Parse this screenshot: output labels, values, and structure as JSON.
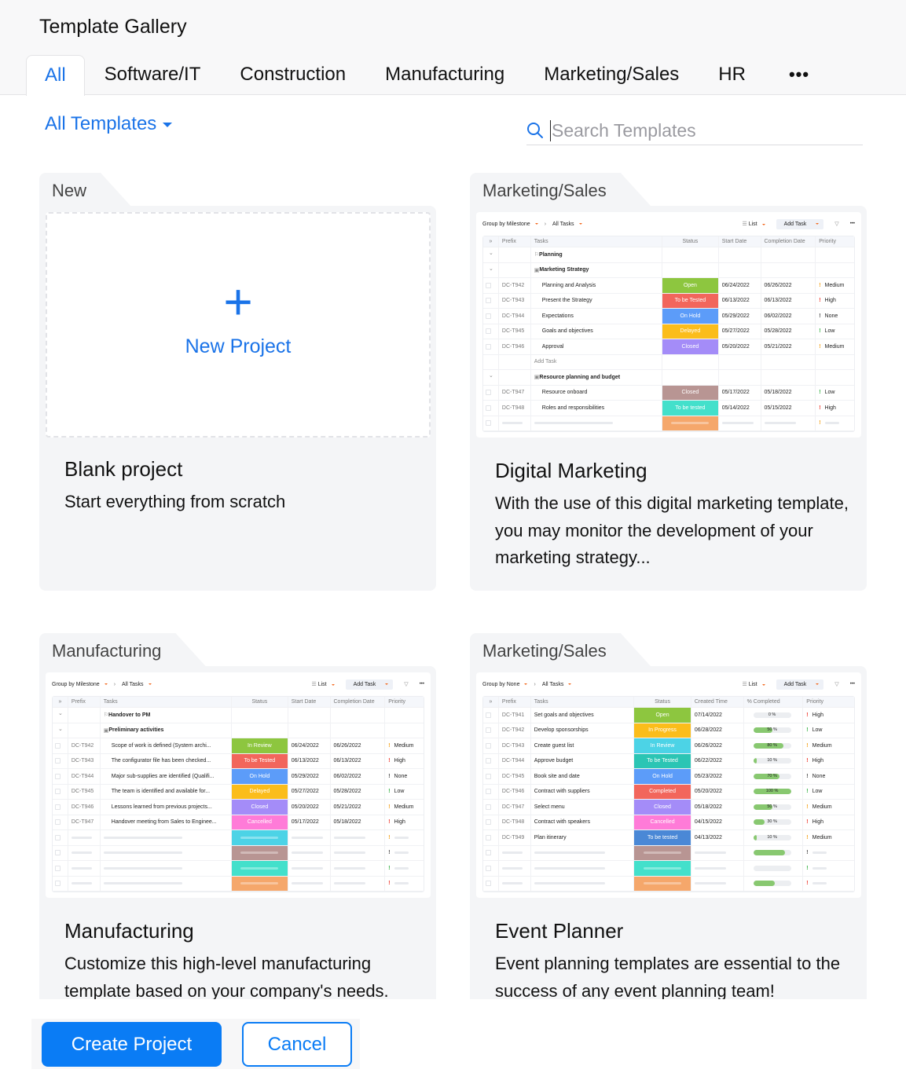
{
  "header": {
    "title": "Template Gallery",
    "tabs": [
      "All",
      "Software/IT",
      "Construction",
      "Manufacturing",
      "Marketing/Sales",
      "HR"
    ],
    "active_tab": "All",
    "more_label": "•••"
  },
  "filter": {
    "label": "All Templates"
  },
  "search": {
    "placeholder": "Search Templates",
    "value": ""
  },
  "cards": [
    {
      "category": "New",
      "title": "Blank project",
      "description": "Start everything from scratch",
      "preview_label": "New Project"
    },
    {
      "category": "Marketing/Sales",
      "title": "Digital Marketing",
      "description": "With the use of this digital marketing template, you may monitor the development of your marketing strategy..."
    },
    {
      "category": "Manufacturing",
      "title": "Manufacturing",
      "description": "Customize this high-level manufacturing template based on your company's needs."
    },
    {
      "category": "Marketing/Sales",
      "title": "Event Planner",
      "description": "Event planning templates are essential to the success of any event planning team!"
    }
  ],
  "previews": [
    {
      "group_by": "Group by Milestone",
      "view": "All Tasks",
      "list_label": "List",
      "add_task": "Add Task",
      "columns": [
        "Prefix",
        "Tasks",
        "Status",
        "Start Date",
        "Completion Date",
        "Priority"
      ],
      "rows": [
        {
          "type": "milestone",
          "task": "Planning"
        },
        {
          "type": "tasklist",
          "task": "Marketing Strategy"
        },
        {
          "type": "task",
          "prefix": "DC-T942",
          "task": "Planning and Analysis",
          "status": "Open",
          "color": "#8dc63f",
          "c1": "06/24/2022",
          "c2": "06/26/2022",
          "priority": "Medium"
        },
        {
          "type": "task",
          "prefix": "DC-T943",
          "task": "Present the Strategy",
          "status": "To be Tested",
          "color": "#f2665c",
          "c1": "06/13/2022",
          "c2": "06/13/2022",
          "priority": "High"
        },
        {
          "type": "task",
          "prefix": "DC-T944",
          "task": "Expectations",
          "status": "On Hold",
          "color": "#5c9cf9",
          "c1": "05/29/2022",
          "c2": "06/02/2022",
          "priority": "None"
        },
        {
          "type": "task",
          "prefix": "DC-T945",
          "task": "Goals and objectives",
          "status": "Delayed",
          "color": "#fbbd1b",
          "c1": "05/27/2022",
          "c2": "05/28/2022",
          "priority": "Low"
        },
        {
          "type": "task",
          "prefix": "DC-T946",
          "task": "Approval",
          "status": "Closed",
          "color": "#a48cf8",
          "c1": "05/20/2022",
          "c2": "05/21/2022",
          "priority": "Medium"
        },
        {
          "type": "add",
          "task": "Add Task"
        },
        {
          "type": "tasklist",
          "task": "Resource planning and budget"
        },
        {
          "type": "task",
          "prefix": "DC-T947",
          "task": "Resource onboard",
          "status": "Closed",
          "color": "#b89593",
          "c1": "05/17/2022",
          "c2": "05/18/2022",
          "priority": "Low"
        },
        {
          "type": "task",
          "prefix": "DC-T948",
          "task": "Roles and responsibilities",
          "status": "To be tested",
          "color": "#43e0cb",
          "c1": "05/14/2022",
          "c2": "05/15/2022",
          "priority": "High"
        },
        {
          "type": "placeholder",
          "color": "#f5a76b",
          "priority": "Medium"
        }
      ]
    },
    {
      "group_by": "Group by Milestone",
      "view": "All Tasks",
      "list_label": "List",
      "add_task": "Add Task",
      "columns": [
        "Prefix",
        "Tasks",
        "Status",
        "Start Date",
        "Completion Date",
        "Priority"
      ],
      "rows": [
        {
          "type": "milestone",
          "task": "Handover to PM"
        },
        {
          "type": "tasklist",
          "task": "Preliminary activities"
        },
        {
          "type": "task",
          "prefix": "DC-T942",
          "task": "Scope of work is defined (System archi...",
          "status": "In Review",
          "color": "#8dc63f",
          "c1": "06/24/2022",
          "c2": "06/26/2022",
          "priority": "Medium"
        },
        {
          "type": "task",
          "prefix": "DC-T943",
          "task": "The configurator file has been checked...",
          "status": "To be Tested",
          "color": "#f2665c",
          "c1": "06/13/2022",
          "c2": "06/13/2022",
          "priority": "High"
        },
        {
          "type": "task",
          "prefix": "DC-T944",
          "task": "Major sub-supplies are identified (Qualifi...",
          "status": "On Hold",
          "color": "#5c9cf9",
          "c1": "05/29/2022",
          "c2": "06/02/2022",
          "priority": "None"
        },
        {
          "type": "task",
          "prefix": "DC-T945",
          "task": "The team is identified and available for...",
          "status": "Delayed",
          "color": "#fbbd1b",
          "c1": "05/27/2022",
          "c2": "05/28/2022",
          "priority": "Low"
        },
        {
          "type": "task",
          "prefix": "DC-T946",
          "task": "Lessons learned from previous projects...",
          "status": "Closed",
          "color": "#a48cf8",
          "c1": "05/20/2022",
          "c2": "05/21/2022",
          "priority": "Medium"
        },
        {
          "type": "task",
          "prefix": "DC-T947",
          "task": "Handover meeting from Sales to Enginee...",
          "status": "Cancelled",
          "color": "#ff7bd8",
          "c1": "05/17/2022",
          "c2": "05/18/2022",
          "priority": "High"
        },
        {
          "type": "placeholder",
          "color": "#4cd3e6",
          "priority": "Medium"
        },
        {
          "type": "placeholder",
          "color": "#b89593",
          "priority": "None"
        },
        {
          "type": "placeholder",
          "color": "#43e0cb",
          "priority": "Low"
        },
        {
          "type": "placeholder",
          "color": "#f5a76b",
          "priority": "High"
        }
      ]
    },
    {
      "group_by": "Group by None",
      "view": "All Tasks",
      "list_label": "List",
      "add_task": "Add Task",
      "columns": [
        "Prefix",
        "Tasks",
        "Status",
        "Created Time",
        "% Completed",
        "Priority"
      ],
      "rows": [
        {
          "type": "task",
          "prefix": "DC-T941",
          "task": "Set goals and objectives",
          "status": "Open",
          "color": "#8dc63f",
          "c1": "07/14/2022",
          "progress": 0,
          "c2": "0 %",
          "priority": "High"
        },
        {
          "type": "task",
          "prefix": "DC-T942",
          "task": "Develop sponsorships",
          "status": "In Progress",
          "color": "#fbbd1b",
          "c1": "06/28/2022",
          "progress": 50,
          "c2": "50 %",
          "priority": "Low"
        },
        {
          "type": "task",
          "prefix": "DC-T943",
          "task": "Create guest list",
          "status": "In Review",
          "color": "#4cd3e6",
          "c1": "06/26/2022",
          "progress": 80,
          "c2": "80 %",
          "priority": "Medium"
        },
        {
          "type": "task",
          "prefix": "DC-T944",
          "task": "Approve budget",
          "status": "To be Tested",
          "color": "#2bc5b4",
          "c1": "06/22/2022",
          "progress": 10,
          "c2": "10 %",
          "priority": "High"
        },
        {
          "type": "task",
          "prefix": "DC-T945",
          "task": "Book site and date",
          "status": "On Hold",
          "color": "#5c9cf9",
          "c1": "05/23/2022",
          "progress": 70,
          "c2": "70 %",
          "priority": "None"
        },
        {
          "type": "task",
          "prefix": "DC-T946",
          "task": "Contract with suppliers",
          "status": "Completed",
          "color": "#f2665c",
          "c1": "05/20/2022",
          "progress": 100,
          "c2": "100 %",
          "priority": "Low"
        },
        {
          "type": "task",
          "prefix": "DC-T947",
          "task": "Select menu",
          "status": "Closed",
          "color": "#a48cf8",
          "c1": "05/18/2022",
          "progress": 50,
          "c2": "50 %",
          "priority": "Medium"
        },
        {
          "type": "task",
          "prefix": "DC-T948",
          "task": "Contract with speakers",
          "status": "Cancelled",
          "color": "#ff7bd8",
          "c1": "04/15/2022",
          "progress": 30,
          "c2": "30 %",
          "priority": "High"
        },
        {
          "type": "task",
          "prefix": "DC-T949",
          "task": "Plan itinerary",
          "status": "To be tested",
          "color": "#4a88d6",
          "c1": "04/13/2022",
          "progress": 10,
          "c2": "10 %",
          "priority": "Medium"
        },
        {
          "type": "placeholder",
          "color": "#b89593",
          "progress": 85,
          "priority": "None"
        },
        {
          "type": "placeholder",
          "color": "#43e0cb",
          "progress": 0,
          "priority": "Low"
        },
        {
          "type": "placeholder",
          "color": "#f5a76b",
          "progress": 58,
          "priority": "High"
        }
      ]
    }
  ],
  "priority_colors": {
    "Medium": "#f5a623",
    "High": "#ef4036",
    "None": "#555555",
    "Low": "#3cb44b"
  },
  "footer": {
    "create_label": "Create Project",
    "cancel_label": "Cancel"
  }
}
